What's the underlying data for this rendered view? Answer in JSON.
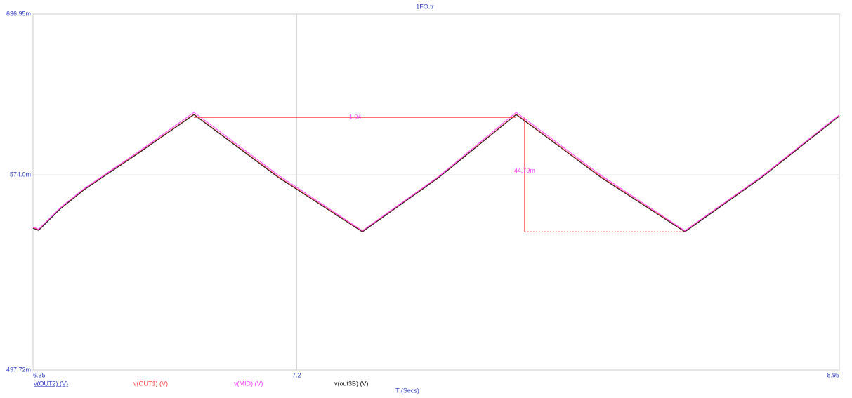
{
  "chart_data": {
    "type": "line",
    "title": "1FO.tr",
    "xlabel": "T (Secs)",
    "x": [
      6.35,
      6.368,
      6.44,
      6.515,
      6.69,
      6.869,
      7.14,
      7.412,
      7.66,
      7.908,
      8.18,
      8.452,
      8.7,
      8.95
    ],
    "series": [
      {
        "name": "v(OUT2) (V)",
        "color": "#3040c0",
        "values": [
          0.5532,
          0.5524,
          0.561,
          0.5683,
          0.5826,
          0.5977,
          0.5733,
          0.5518,
          0.5732,
          0.5977,
          0.5733,
          0.5518,
          0.5731,
          0.5971
        ]
      },
      {
        "name": "v(OUT1) (V)",
        "color": "#ff4040",
        "values": [
          0.5533,
          0.5525,
          0.5611,
          0.5684,
          0.5827,
          0.5978,
          0.5734,
          0.5519,
          0.5733,
          0.5978,
          0.5734,
          0.5519,
          0.5732,
          0.5972
        ]
      },
      {
        "name": "v(MID) (V)",
        "color": "#ff40ff",
        "values": [
          0.5536,
          0.5528,
          0.5614,
          0.5687,
          0.5831,
          0.5985,
          0.574,
          0.5522,
          0.5736,
          0.5985,
          0.574,
          0.5522,
          0.5735,
          0.5975
        ]
      },
      {
        "name": "v(out3B) (V)",
        "color": "#202020",
        "values": [
          0.5531,
          0.5523,
          0.5609,
          0.5682,
          0.5825,
          0.5976,
          0.5731,
          0.5517,
          0.5731,
          0.5976,
          0.5731,
          0.5517,
          0.573,
          0.597
        ]
      }
    ],
    "xlim": [
      6.35,
      8.95
    ],
    "xticks": [
      6.35,
      7.2,
      8.95
    ],
    "ylim": [
      0.49772,
      0.63695
    ],
    "yticks": [
      {
        "value": 0.49772,
        "label": "497.72m"
      },
      {
        "value": 0.574,
        "label": "574.0m"
      },
      {
        "value": 0.63695,
        "label": "636.95m"
      }
    ],
    "grid": true,
    "annotations": [
      {
        "label": "1.04",
        "x": [
          6.869,
          7.908
        ],
        "y": 0.5965,
        "color": "#ff4040"
      },
      {
        "label": "44.79m",
        "x": 7.935,
        "y": [
          0.5965,
          0.5518
        ],
        "color": "#ff40ff"
      }
    ]
  }
}
